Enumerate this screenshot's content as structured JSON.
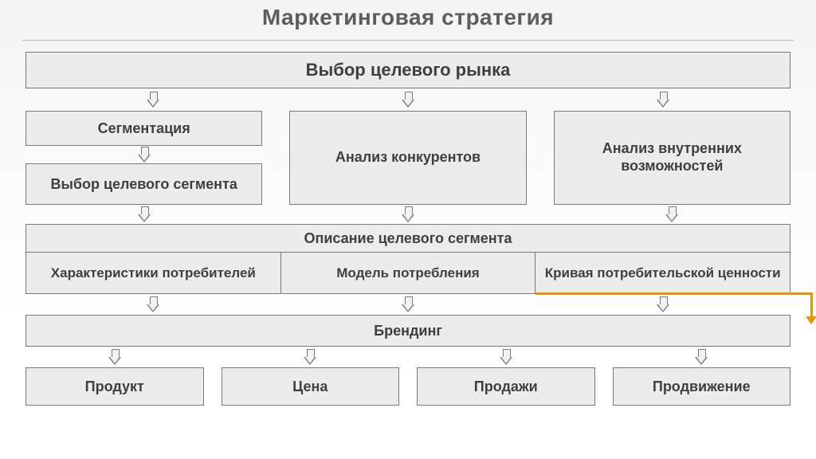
{
  "title": "Маркетинговая  стратегия",
  "colors": {
    "box_bg": "#ececec",
    "box_border": "#7a7a7a",
    "text": "#3f3f3f",
    "title": "#5d5d5d",
    "rule": "#b9b9b9",
    "accent": "#f29100",
    "arrow_fill": "#f2f2f2"
  },
  "diagram": {
    "type": "flowchart",
    "row1": "Выбор целевого рынка",
    "cols": {
      "a1": "Сегментация",
      "a2": "Выбор целевого сегмента",
      "b": "Анализ конкурентов",
      "c": "Анализ внутренних возможностей"
    },
    "row4": "Описание целевого сегмента",
    "sub": {
      "s1": "Характеристики потребителей",
      "s2": "Модель потребления",
      "s3": "Кривая потребительской ценности"
    },
    "row7": "Брендинг",
    "bottom": {
      "p1": "Продукт",
      "p2": "Цена",
      "p3": "Продажи",
      "p4": "Продвижение"
    }
  }
}
